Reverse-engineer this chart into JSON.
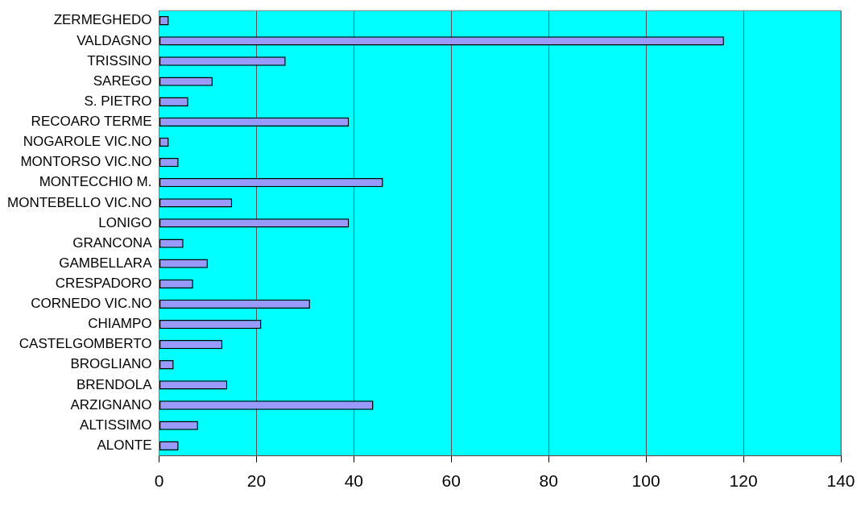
{
  "chart_data": {
    "type": "bar",
    "orientation": "horizontal",
    "categories": [
      "ZERMEGHEDO",
      "VALDAGNO",
      "TRISSINO",
      "SAREGO",
      "S. PIETRO",
      "RECOARO TERME",
      "NOGAROLE VIC.NO",
      "MONTORSO VIC.NO",
      "MONTECCHIO M.",
      "MONTEBELLO VIC.NO",
      "LONIGO",
      "GRANCONA",
      "GAMBELLARA",
      "CRESPADORO",
      "CORNEDO VIC.NO",
      "CHIAMPO",
      "CASTELGOMBERTO",
      "BROGLIANO",
      "BRENDOLA",
      "ARZIGNANO",
      "ALTISSIMO",
      "ALONTE"
    ],
    "values": [
      2,
      116,
      26,
      11,
      6,
      39,
      2,
      4,
      46,
      15,
      39,
      5,
      10,
      7,
      31,
      21,
      13,
      3,
      14,
      44,
      8,
      4
    ],
    "color": "#9999ff",
    "xlim": [
      0,
      140
    ],
    "xticks": [
      0,
      20,
      40,
      60,
      80,
      100,
      120,
      140
    ],
    "grid": "x",
    "legend": false
  }
}
